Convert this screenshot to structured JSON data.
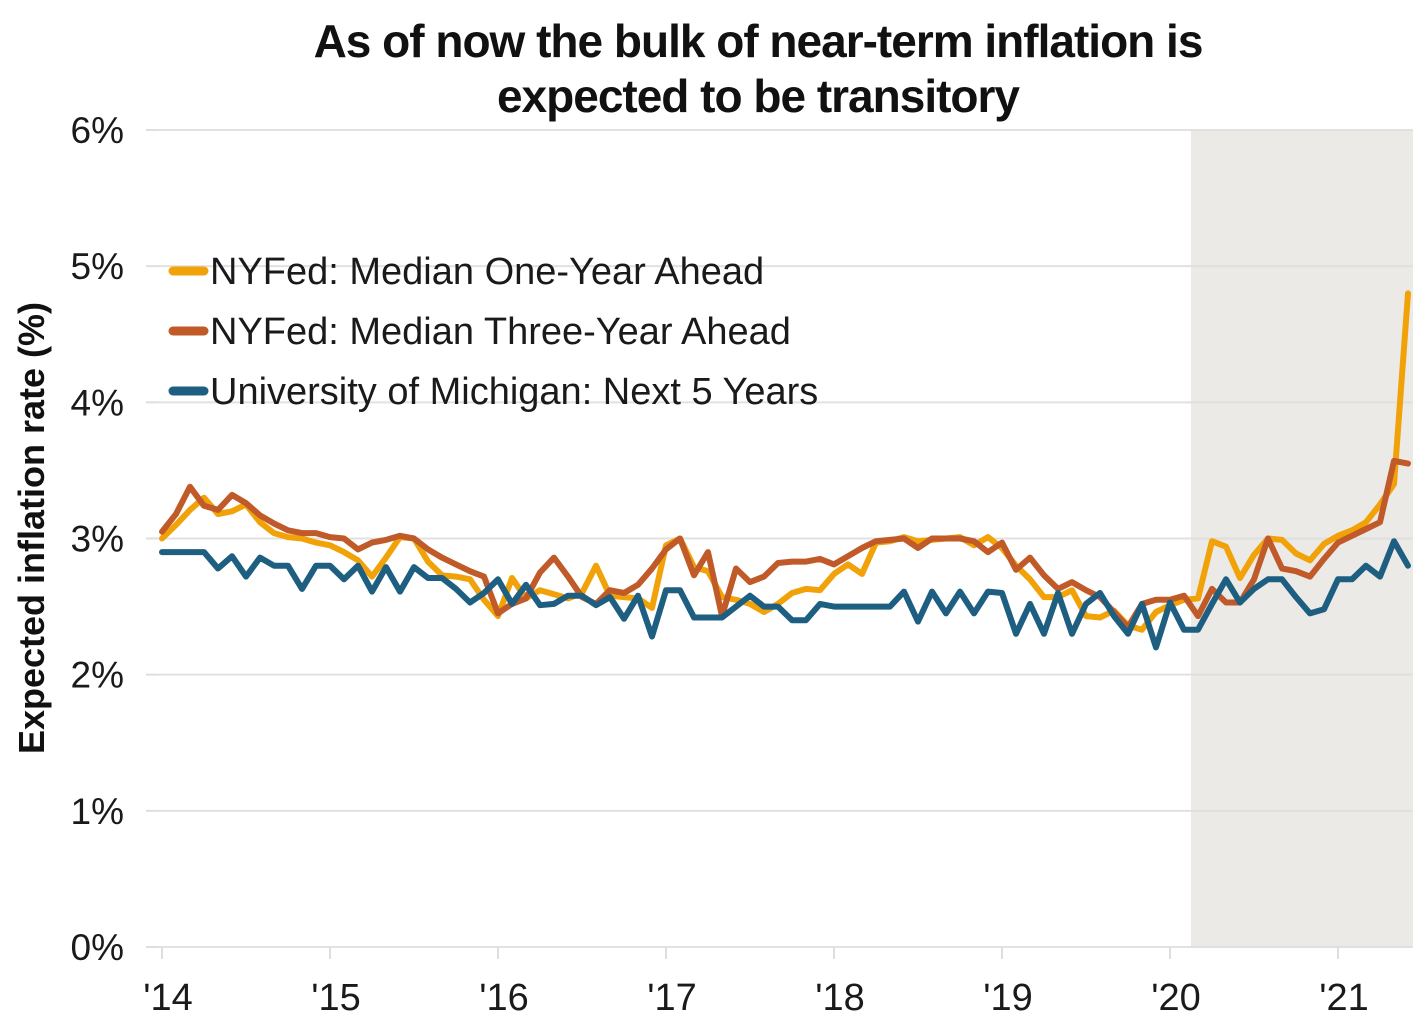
{
  "title_lines": [
    "As of now the bulk of near-term inflation is",
    "expected to be transitory"
  ],
  "y_axis": {
    "label": "Expected inflation rate (%)",
    "tick_labels": [
      "0%",
      "1%",
      "2%",
      "3%",
      "4%",
      "5%",
      "6%"
    ]
  },
  "x_axis": {
    "tick_labels": [
      "'14",
      "'15",
      "'16",
      "'17",
      "'18",
      "'19",
      "'20",
      "'21"
    ]
  },
  "legend": {
    "items": [
      {
        "label": "NYFed: Median One-Year Ahead",
        "color": "#F1A208"
      },
      {
        "label": "NYFed: Median Three-Year Ahead",
        "color": "#C05A28"
      },
      {
        "label": "University of Michigan: Next 5 Years",
        "color": "#1E5F81"
      }
    ]
  },
  "colors": {
    "shaded_region": "#ECEAE7",
    "gridline": "#DEDEDE",
    "text": "#1A1A1A"
  },
  "chart_data": {
    "type": "line",
    "frequency": "monthly",
    "start_month": "2014-01",
    "end_month": "2021-06",
    "ylim": [
      0,
      6
    ],
    "ylabel": "Expected inflation rate (%)",
    "grid": "horizontal",
    "legend_position": "upper-left-inside",
    "shaded_region": {
      "start": "2020-02",
      "end": "2021-06"
    },
    "x_tick_month_indices": [
      0,
      12,
      24,
      36,
      48,
      60,
      72,
      84
    ],
    "series": [
      {
        "name": "NYFed: Median One-Year Ahead",
        "color": "#F1A208",
        "values": [
          3.0,
          3.1,
          3.21,
          3.3,
          3.18,
          3.2,
          3.25,
          3.12,
          3.04,
          3.01,
          3.0,
          2.97,
          2.95,
          2.9,
          2.84,
          2.72,
          2.86,
          3.01,
          3.0,
          2.83,
          2.73,
          2.72,
          2.7,
          2.55,
          2.43,
          2.71,
          2.56,
          2.62,
          2.59,
          2.56,
          2.6,
          2.8,
          2.58,
          2.57,
          2.56,
          2.49,
          2.95,
          3.0,
          2.79,
          2.76,
          2.57,
          2.55,
          2.52,
          2.46,
          2.52,
          2.6,
          2.63,
          2.62,
          2.74,
          2.81,
          2.74,
          2.97,
          2.98,
          3.01,
          2.98,
          2.99,
          3.0,
          3.01,
          2.95,
          3.01,
          2.93,
          2.8,
          2.7,
          2.57,
          2.57,
          2.62,
          2.43,
          2.42,
          2.47,
          2.36,
          2.33,
          2.46,
          2.51,
          2.55,
          2.56,
          2.98,
          2.94,
          2.71,
          2.88,
          3.0,
          2.99,
          2.89,
          2.84,
          2.96,
          3.02,
          3.06,
          3.12,
          3.25,
          3.4,
          4.8
        ]
      },
      {
        "name": "NYFed: Median Three-Year Ahead",
        "color": "#C05A28",
        "values": [
          3.05,
          3.18,
          3.38,
          3.24,
          3.21,
          3.32,
          3.26,
          3.17,
          3.11,
          3.06,
          3.04,
          3.04,
          3.01,
          3.0,
          2.92,
          2.97,
          2.99,
          3.02,
          3.0,
          2.92,
          2.86,
          2.81,
          2.76,
          2.72,
          2.45,
          2.52,
          2.56,
          2.75,
          2.86,
          2.72,
          2.57,
          2.52,
          2.62,
          2.6,
          2.66,
          2.78,
          2.92,
          3.0,
          2.73,
          2.9,
          2.43,
          2.78,
          2.68,
          2.72,
          2.82,
          2.83,
          2.83,
          2.85,
          2.81,
          2.87,
          2.93,
          2.98,
          2.99,
          3.0,
          2.93,
          3.0,
          3.0,
          3.0,
          2.98,
          2.9,
          2.97,
          2.77,
          2.86,
          2.73,
          2.63,
          2.68,
          2.62,
          2.57,
          2.46,
          2.35,
          2.52,
          2.55,
          2.55,
          2.58,
          2.43,
          2.63,
          2.53,
          2.53,
          2.7,
          3.0,
          2.78,
          2.76,
          2.72,
          2.85,
          2.97,
          3.02,
          3.07,
          3.12,
          3.57,
          3.55
        ]
      },
      {
        "name": "University of Michigan: Next 5 Years",
        "color": "#1E5F81",
        "values": [
          2.9,
          2.9,
          2.9,
          2.9,
          2.78,
          2.87,
          2.72,
          2.86,
          2.8,
          2.8,
          2.63,
          2.8,
          2.8,
          2.7,
          2.8,
          2.61,
          2.79,
          2.61,
          2.79,
          2.71,
          2.71,
          2.63,
          2.53,
          2.6,
          2.7,
          2.52,
          2.66,
          2.51,
          2.52,
          2.58,
          2.58,
          2.51,
          2.57,
          2.41,
          2.58,
          2.28,
          2.62,
          2.62,
          2.42,
          2.42,
          2.42,
          2.5,
          2.58,
          2.5,
          2.5,
          2.4,
          2.4,
          2.52,
          2.5,
          2.5,
          2.5,
          2.5,
          2.5,
          2.61,
          2.39,
          2.61,
          2.45,
          2.61,
          2.45,
          2.61,
          2.6,
          2.3,
          2.52,
          2.3,
          2.6,
          2.3,
          2.52,
          2.6,
          2.43,
          2.3,
          2.52,
          2.2,
          2.53,
          2.33,
          2.33,
          2.52,
          2.7,
          2.53,
          2.63,
          2.7,
          2.7,
          2.57,
          2.45,
          2.48,
          2.7,
          2.7,
          2.8,
          2.72,
          2.98,
          2.8
        ]
      }
    ]
  }
}
